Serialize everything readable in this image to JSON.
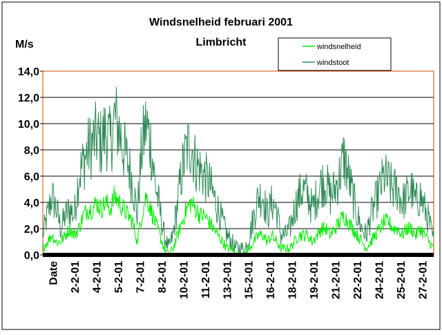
{
  "chart_data": {
    "type": "line",
    "title": "Windsnelheid februari 2001",
    "subtitle": "Limbricht",
    "ylabel": "M/s",
    "ylim": [
      0,
      14
    ],
    "yticks": [
      "14,0",
      "12,0",
      "10,0",
      "8,0",
      "6,0",
      "4,0",
      "2,0",
      "0,0"
    ],
    "ytick_values": [
      14,
      12,
      10,
      8,
      6,
      4,
      2,
      0
    ],
    "grid": "horizontal",
    "legend_position": "top-right",
    "xticks": [
      "Date",
      "2-2-01",
      "4-2-01",
      "5-2-01",
      "7-2-01",
      "8-2-01",
      "10-2-01",
      "11-2-01",
      "13-2-01",
      "15-2-01",
      "16-2-01",
      "18-2-01",
      "19-2-01",
      "21-2-01",
      "22-2-01",
      "24-2-01",
      "25-2-01",
      "27-2-01"
    ],
    "series": [
      {
        "name": "windsnelheid",
        "color": "#00ee00",
        "values": [
          0.5,
          1.0,
          1.5,
          1.0,
          1.0,
          1.5,
          2.0,
          1.5,
          2.0,
          3.0,
          3.5,
          3.5,
          4.0,
          3.5,
          4.0,
          3.5,
          4.5,
          4.0,
          3.5,
          3.0,
          2.5,
          1.0,
          3.0,
          4.5,
          3.5,
          2.5,
          1.5,
          0.5,
          0.0,
          0.5,
          1.5,
          2.5,
          3.5,
          4.0,
          3.5,
          3.0,
          3.0,
          2.5,
          2.0,
          1.5,
          1.0,
          0.5,
          0.5,
          0.0,
          0.0,
          0.0,
          0.5,
          1.0,
          1.5,
          1.5,
          1.0,
          1.5,
          1.0,
          0.5,
          0.5,
          0.5,
          1.0,
          1.5,
          1.5,
          1.5,
          1.0,
          1.5,
          2.0,
          2.0,
          1.5,
          2.0,
          2.5,
          3.0,
          2.5,
          2.0,
          1.5,
          1.0,
          0.5,
          1.0,
          1.5,
          2.0,
          2.5,
          2.5,
          2.0,
          2.0,
          1.5,
          2.0,
          2.0,
          1.5,
          2.0,
          1.5,
          1.0,
          0.5
        ]
      },
      {
        "name": "windstoot",
        "color": "#2e8b57",
        "values": [
          1.5,
          3.0,
          4.5,
          3.5,
          2.0,
          3.0,
          3.5,
          3.0,
          6.0,
          7.0,
          8.0,
          8.5,
          9.0,
          8.5,
          9.5,
          8.5,
          10.5,
          9.5,
          8.0,
          7.0,
          5.5,
          3.0,
          8.0,
          10.0,
          8.5,
          5.5,
          3.5,
          1.5,
          0.5,
          1.5,
          4.0,
          6.5,
          8.0,
          8.5,
          7.0,
          6.5,
          6.0,
          5.5,
          4.5,
          3.5,
          2.5,
          1.5,
          1.0,
          0.5,
          0.5,
          0.5,
          1.5,
          3.0,
          4.5,
          4.5,
          3.0,
          4.0,
          3.5,
          1.5,
          1.5,
          2.0,
          3.5,
          4.5,
          5.0,
          4.5,
          3.5,
          4.5,
          5.5,
          5.5,
          4.5,
          5.0,
          6.0,
          7.5,
          6.0,
          4.5,
          3.0,
          2.0,
          1.5,
          3.0,
          4.0,
          5.0,
          6.0,
          5.5,
          5.0,
          5.0,
          4.0,
          4.5,
          5.0,
          4.0,
          4.5,
          3.5,
          2.5,
          1.0
        ]
      }
    ]
  }
}
